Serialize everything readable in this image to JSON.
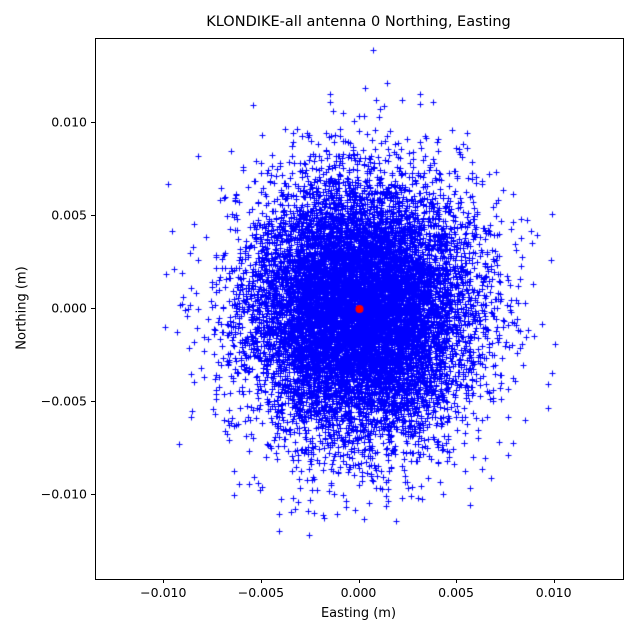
{
  "title": "KLONDIKE-all antenna 0 Northing, Easting",
  "chart_data": {
    "type": "scatter",
    "title": "KLONDIKE-all antenna 0 Northing, Easting",
    "xlabel": "Easting (m)",
    "ylabel": "Northing (m)",
    "xlim": [
      -0.0135,
      0.0135
    ],
    "ylim": [
      -0.0145,
      0.0145
    ],
    "grid": false,
    "legend": "none",
    "xticks": {
      "values": [
        -0.01,
        -0.005,
        0.0,
        0.005,
        0.01
      ],
      "labels": [
        "−0.010",
        "−0.005",
        "0.000",
        "0.005",
        "0.010"
      ]
    },
    "yticks": {
      "values": [
        -0.01,
        -0.005,
        0.0,
        0.005,
        0.01
      ],
      "labels": [
        "−0.010",
        "−0.005",
        "0.000",
        "0.005",
        "0.010"
      ]
    },
    "series": [
      {
        "name": "antenna-0-position-scatter",
        "marker": "plus",
        "color": "#0000ff",
        "marker_size_px": 7,
        "distribution": {
          "kind": "gaussian",
          "mean": [
            0.0,
            0.0
          ],
          "std": [
            0.0029,
            0.0035
          ],
          "n": 12000,
          "seed": 42,
          "observed_extent_x": [
            -0.0125,
            0.0128
          ],
          "observed_extent_y": [
            -0.013,
            0.0137
          ]
        }
      },
      {
        "name": "mean-center-reference",
        "marker": "circle",
        "color": "#ff0000",
        "marker_size_px": 8,
        "points": [
          [
            0.0,
            0.0
          ]
        ]
      }
    ]
  }
}
